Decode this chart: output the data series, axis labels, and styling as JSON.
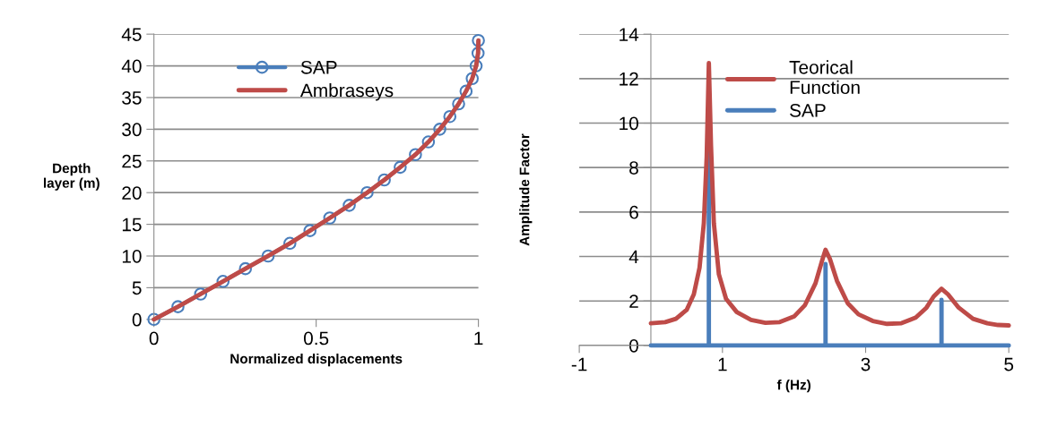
{
  "chart_data": [
    {
      "type": "line",
      "xlabel": "Normalized displacements",
      "ylabel": "Depth\nlayer (m)",
      "xlim": [
        0,
        1
      ],
      "xticks": [
        0,
        0.5,
        1
      ],
      "ylim": [
        0,
        45
      ],
      "yticks": [
        0,
        5,
        10,
        15,
        20,
        25,
        30,
        35,
        40,
        45
      ],
      "grid": "y",
      "legend": "top",
      "series": [
        {
          "name": "SAP",
          "color": "#4a7ebb",
          "marker": "circle",
          "x": [
            0,
            0.074,
            0.144,
            0.213,
            0.282,
            0.352,
            0.419,
            0.481,
            0.542,
            0.602,
            0.657,
            0.71,
            0.759,
            0.806,
            0.846,
            0.881,
            0.912,
            0.939,
            0.962,
            0.981,
            0.993,
            0.999,
            1.0
          ],
          "values": [
            0,
            2,
            4,
            6,
            8,
            10,
            12,
            14,
            16,
            18,
            20,
            22,
            24,
            26,
            28,
            30,
            32,
            34,
            36,
            38,
            40,
            42,
            44
          ]
        },
        {
          "name": "Ambraseys",
          "color": "#be4b48",
          "marker": "none",
          "x": [
            0,
            0.074,
            0.144,
            0.213,
            0.282,
            0.352,
            0.419,
            0.481,
            0.542,
            0.602,
            0.657,
            0.71,
            0.759,
            0.806,
            0.846,
            0.881,
            0.912,
            0.939,
            0.962,
            0.981,
            0.993,
            0.999,
            1.0
          ],
          "values": [
            0,
            2,
            4,
            6,
            8,
            10,
            12,
            14,
            16,
            18,
            20,
            22,
            24,
            26,
            28,
            30,
            32,
            34,
            36,
            38,
            40,
            42,
            44
          ]
        }
      ]
    },
    {
      "type": "line",
      "xlabel": "f (Hz)",
      "ylabel": "Amplitude Factor",
      "xlim": [
        -1,
        5
      ],
      "xticks": [
        -1,
        1,
        3,
        5
      ],
      "ylim": [
        0,
        14
      ],
      "yticks": [
        0,
        2,
        4,
        6,
        8,
        10,
        12,
        14
      ],
      "grid": "y",
      "legend": "top",
      "series": [
        {
          "name": "Teorical Function",
          "color": "#be4b48",
          "marker": "none",
          "x": [
            0,
            0.2,
            0.35,
            0.5,
            0.6,
            0.68,
            0.74,
            0.78,
            0.81,
            0.84,
            0.88,
            0.95,
            1.05,
            1.2,
            1.4,
            1.6,
            1.8,
            2.0,
            2.15,
            2.3,
            2.4,
            2.44,
            2.5,
            2.6,
            2.75,
            2.9,
            3.1,
            3.3,
            3.5,
            3.7,
            3.85,
            3.95,
            4.06,
            4.15,
            4.3,
            4.5,
            4.7,
            4.85,
            5.0
          ],
          "values": [
            1.0,
            1.05,
            1.2,
            1.6,
            2.3,
            3.5,
            5.5,
            8.5,
            12.7,
            9,
            5.5,
            3.2,
            2.1,
            1.5,
            1.15,
            1.02,
            1.05,
            1.3,
            1.8,
            2.8,
            3.9,
            4.3,
            3.9,
            2.9,
            1.9,
            1.4,
            1.1,
            0.97,
            1.0,
            1.25,
            1.7,
            2.2,
            2.55,
            2.3,
            1.7,
            1.2,
            1.0,
            0.92,
            0.9
          ]
        },
        {
          "name": "SAP",
          "color": "#4a7ebb",
          "marker": "none",
          "x": [
            0,
            0.81,
            0.81,
            0.81,
            2.44,
            2.44,
            2.44,
            4.06,
            4.06,
            4.06,
            5.0
          ],
          "values": [
            0,
            0,
            10,
            0,
            0,
            3.66,
            0,
            0,
            2.05,
            0,
            0
          ]
        }
      ]
    }
  ]
}
